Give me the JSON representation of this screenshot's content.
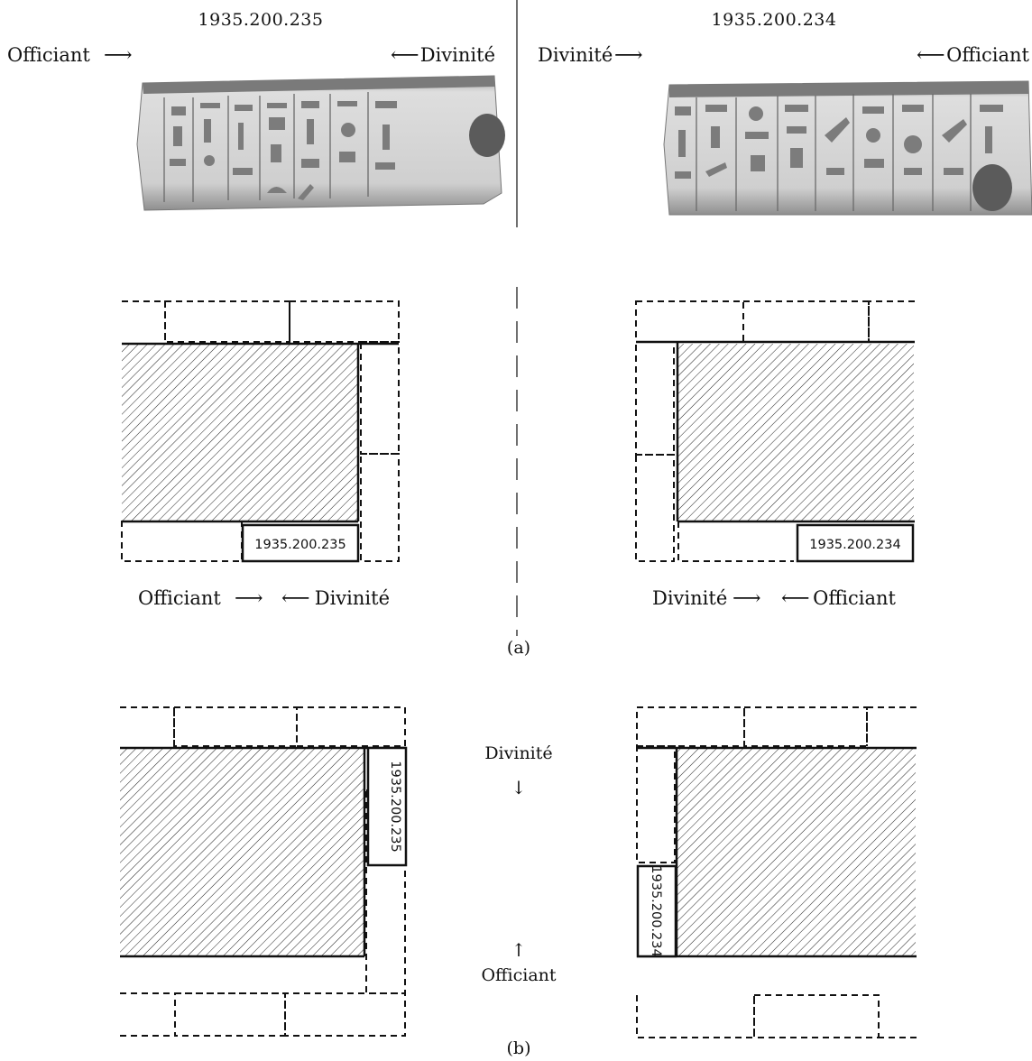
{
  "top": {
    "left_block": {
      "number": "1935.200.235",
      "left_label": "Officiant",
      "right_label": "Divinité",
      "photo_icon": "stone-relief-block-235"
    },
    "right_block": {
      "number": "1935.200.234",
      "left_label": "Divinité",
      "right_label": "Officiant",
      "photo_icon": "stone-relief-block-234"
    }
  },
  "panel_a": {
    "caption": "(a)",
    "left": {
      "box_label": "1935.200.235",
      "left_label": "Officiant",
      "right_label": "Divinité"
    },
    "right": {
      "box_label": "1935.200.234",
      "left_label": "Divinité",
      "right_label": "Officiant"
    }
  },
  "panel_b": {
    "caption": "(b)",
    "left": {
      "box_label": "1935.200.235"
    },
    "right": {
      "box_label": "1935.200.234"
    },
    "center": {
      "top_label": "Divinité",
      "bottom_label": "Officiant"
    }
  },
  "glyphs": {
    "arrow_right": "⟶",
    "arrow_left": "⟵",
    "arrow_down": "↓",
    "arrow_up": "↑"
  },
  "colors": {
    "stroke": "#111111",
    "stone_light": "#d9d9d9",
    "stone_dark": "#6e6e6e"
  }
}
